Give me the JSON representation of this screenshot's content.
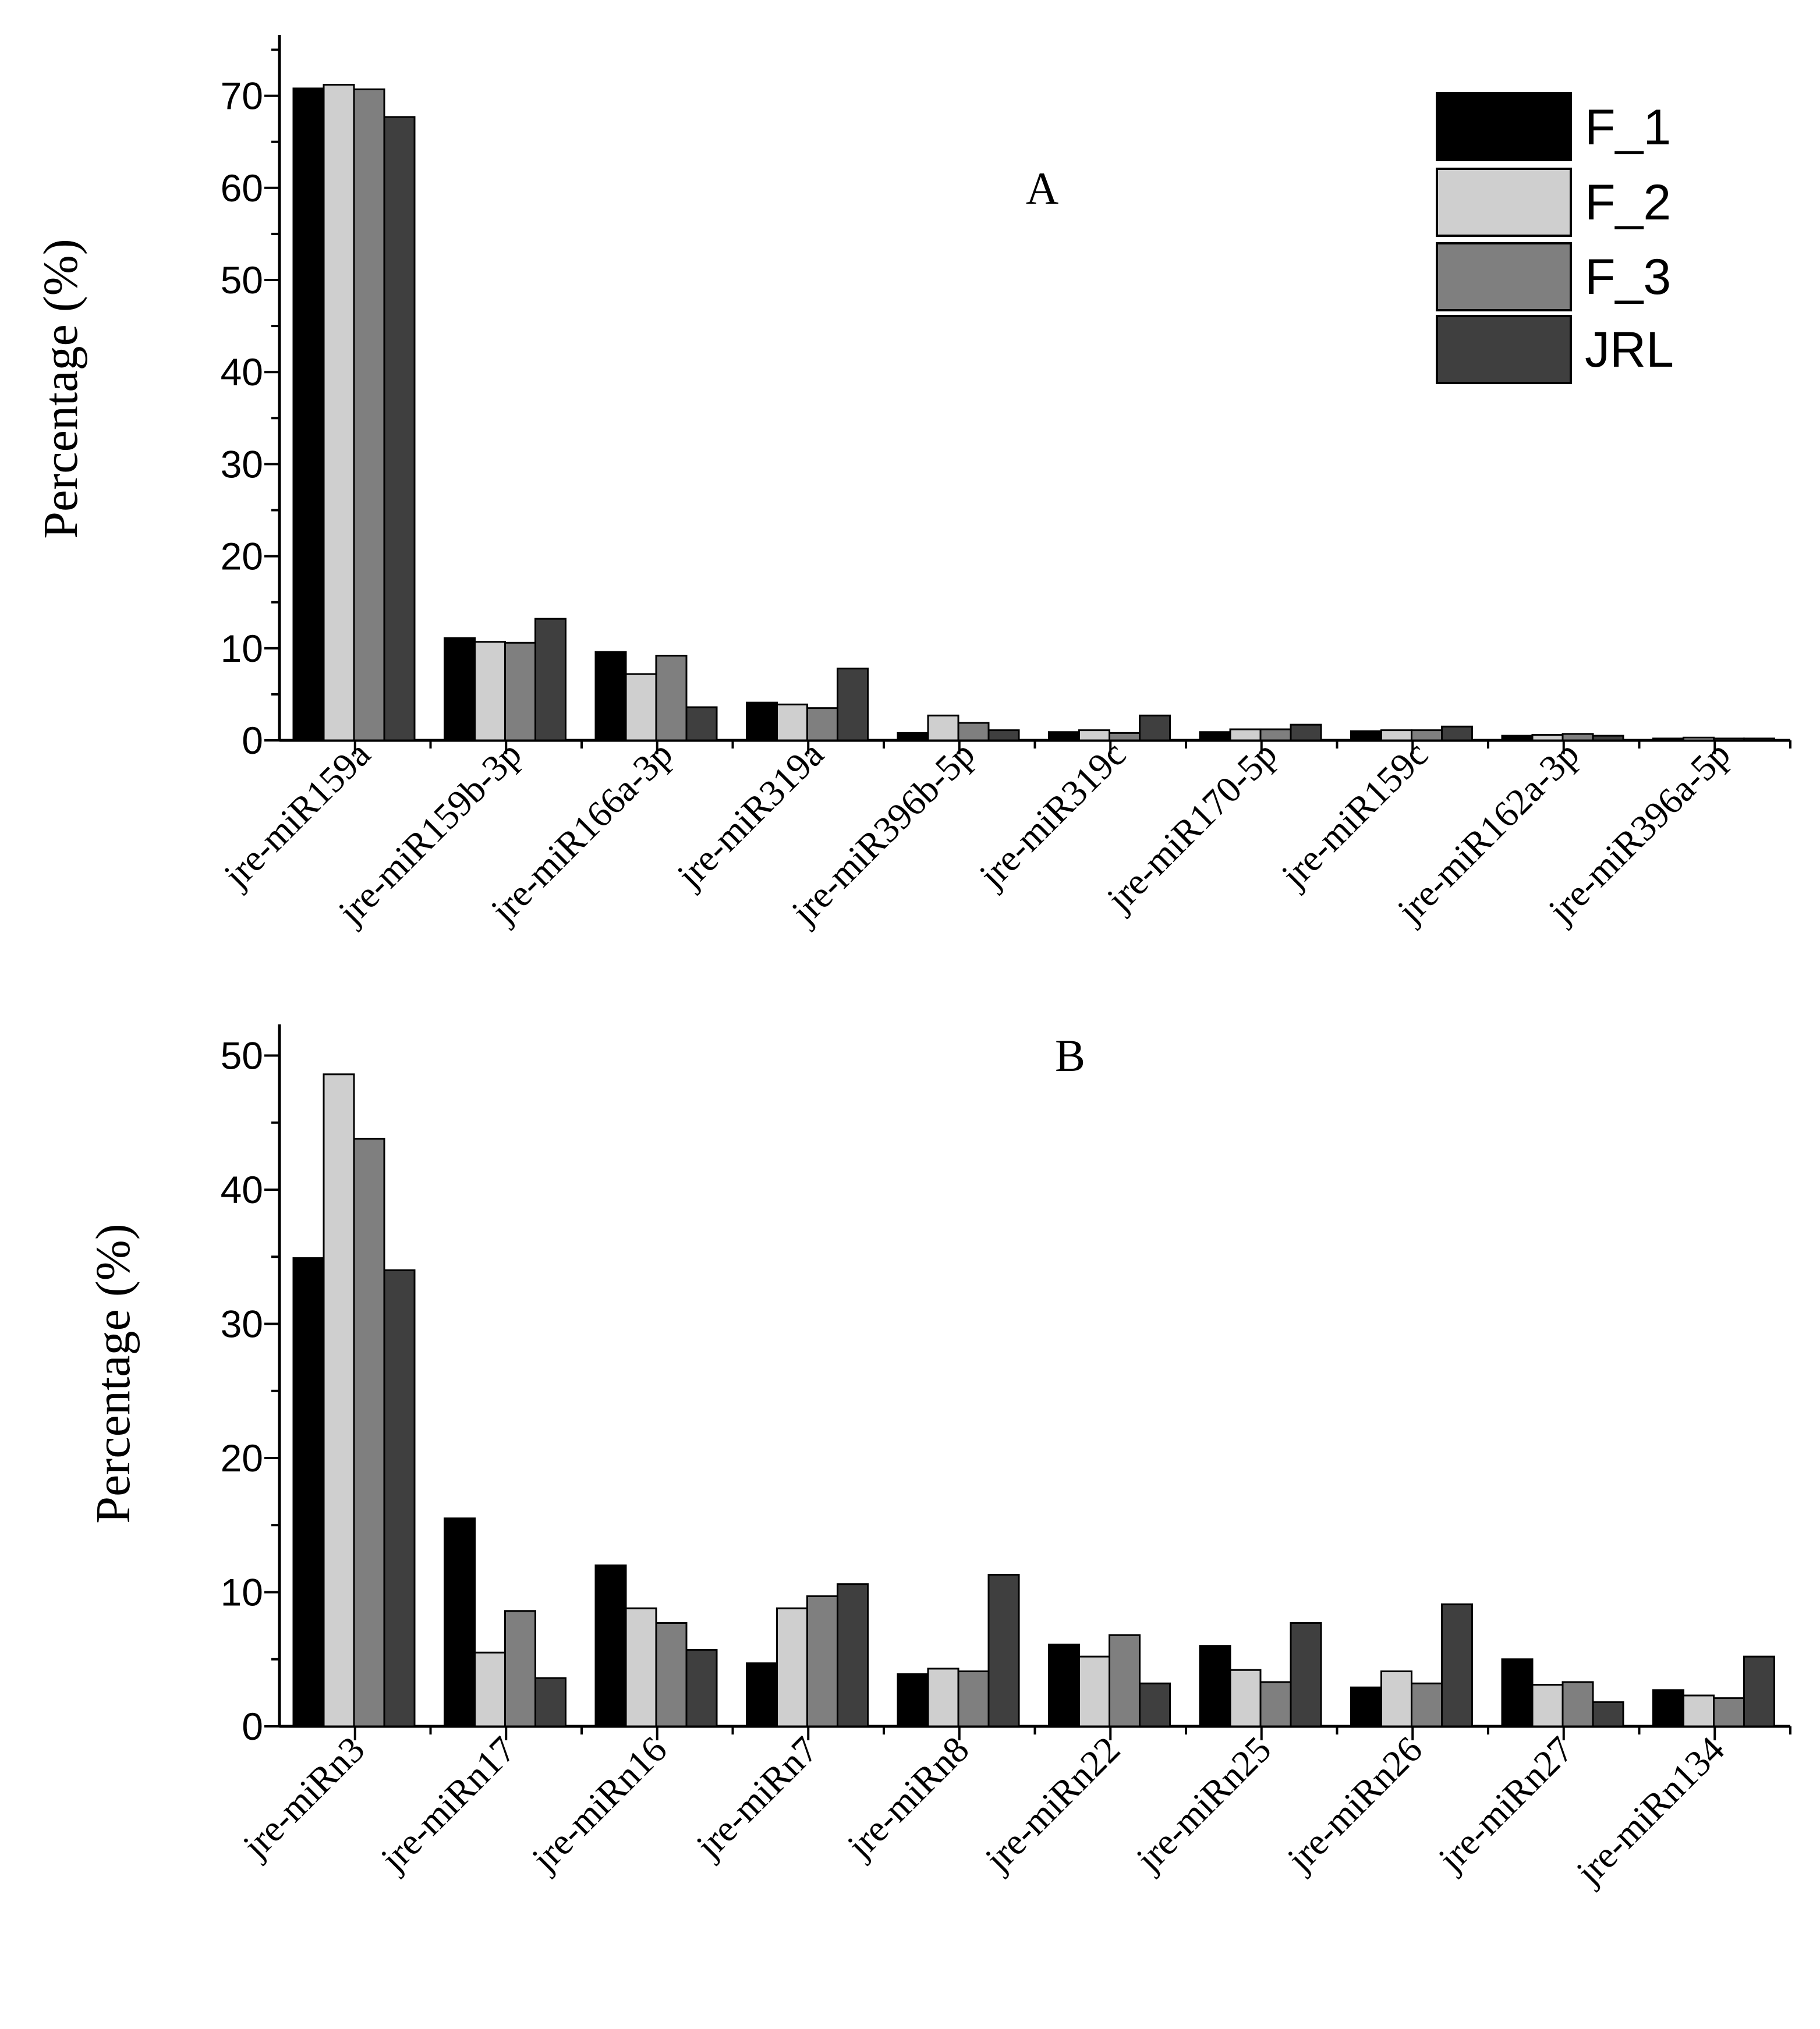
{
  "series_colors": {
    "F_1": "#000000",
    "F_2": "#cfcfcf",
    "F_3": "#7f7f7f",
    "JRL": "#3f3f3f"
  },
  "legend": [
    "F_1",
    "F_2",
    "F_3",
    "JRL"
  ],
  "chart_data": [
    {
      "type": "bar",
      "panel": "A",
      "title": "A",
      "ylabel": "Percentage (%)",
      "xlabel": "",
      "ylim": [
        0,
        75
      ],
      "yticks": [
        0,
        10,
        20,
        30,
        40,
        50,
        60,
        70
      ],
      "categories": [
        "jre-miR159a",
        "jre-miR159b-3p",
        "jre-miR166a-3p",
        "jre-miR319a",
        "jre-miR396b-5p",
        "jre-miR319c",
        "jre-miR170-5p",
        "jre-miR159c",
        "jre-miR162a-3p",
        "jre-miR396a-5p"
      ],
      "series": [
        {
          "name": "F_1",
          "values": [
            70.8,
            11.1,
            9.6,
            4.1,
            0.8,
            0.9,
            0.9,
            1.0,
            0.5,
            0.2
          ]
        },
        {
          "name": "F_2",
          "values": [
            71.2,
            10.7,
            7.2,
            3.9,
            2.7,
            1.1,
            1.2,
            1.1,
            0.6,
            0.3
          ]
        },
        {
          "name": "F_3",
          "values": [
            70.7,
            10.6,
            9.2,
            3.5,
            1.9,
            0.8,
            1.2,
            1.1,
            0.7,
            0.2
          ]
        },
        {
          "name": "JRL",
          "values": [
            67.7,
            13.2,
            3.6,
            7.8,
            1.1,
            2.7,
            1.7,
            1.5,
            0.5,
            0.2
          ]
        }
      ]
    },
    {
      "type": "bar",
      "panel": "B",
      "title": "B",
      "ylabel": "Percentage (%)",
      "xlabel": "",
      "ylim": [
        0,
        53
      ],
      "yticks": [
        0,
        10,
        20,
        30,
        40,
        50
      ],
      "categories": [
        "jre-miRn3",
        "jre-miRn17",
        "jre-miRn16",
        "jre-miRn7",
        "jre-miRn8",
        "jre-miRn22",
        "jre-miRn25",
        "jre-miRn26",
        "jre-miRn27",
        "jre-miRn134"
      ],
      "series": [
        {
          "name": "F_1",
          "values": [
            34.9,
            15.5,
            12.0,
            4.7,
            3.9,
            6.1,
            6.0,
            2.9,
            5.0,
            2.7
          ]
        },
        {
          "name": "F_2",
          "values": [
            48.6,
            5.5,
            8.8,
            8.8,
            4.3,
            5.2,
            4.2,
            4.1,
            3.1,
            2.3
          ]
        },
        {
          "name": "F_3",
          "values": [
            43.8,
            8.6,
            7.7,
            9.7,
            4.1,
            6.8,
            3.3,
            3.2,
            3.3,
            2.1
          ]
        },
        {
          "name": "JRL",
          "values": [
            34.0,
            3.6,
            5.7,
            10.6,
            11.3,
            3.2,
            7.7,
            9.1,
            1.8,
            5.2
          ]
        }
      ]
    }
  ]
}
